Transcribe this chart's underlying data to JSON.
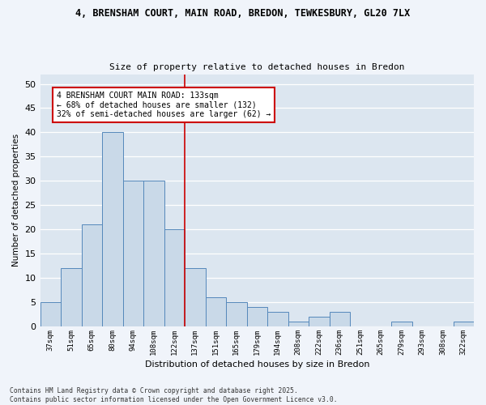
{
  "title_line1": "4, BRENSHAM COURT, MAIN ROAD, BREDON, TEWKESBURY, GL20 7LX",
  "title_line2": "Size of property relative to detached houses in Bredon",
  "xlabel": "Distribution of detached houses by size in Bredon",
  "ylabel": "Number of detached properties",
  "categories": [
    "37sqm",
    "51sqm",
    "65sqm",
    "80sqm",
    "94sqm",
    "108sqm",
    "122sqm",
    "137sqm",
    "151sqm",
    "165sqm",
    "179sqm",
    "194sqm",
    "208sqm",
    "222sqm",
    "236sqm",
    "251sqm",
    "265sqm",
    "279sqm",
    "293sqm",
    "308sqm",
    "322sqm"
  ],
  "values": [
    5,
    12,
    21,
    40,
    30,
    30,
    20,
    12,
    6,
    5,
    4,
    3,
    1,
    2,
    3,
    0,
    0,
    1,
    0,
    0,
    1
  ],
  "bar_color": "#c9d9e8",
  "bar_edge_color": "#5588bb",
  "vline_color": "#cc0000",
  "annotation_text": "4 BRENSHAM COURT MAIN ROAD: 133sqm\n← 68% of detached houses are smaller (132)\n32% of semi-detached houses are larger (62) →",
  "annotation_box_color": "#cc0000",
  "ylim": [
    0,
    52
  ],
  "yticks": [
    0,
    5,
    10,
    15,
    20,
    25,
    30,
    35,
    40,
    45,
    50
  ],
  "fig_background": "#f0f4fa",
  "plot_background": "#dce6f0",
  "grid_color": "#ffffff",
  "footer_line1": "Contains HM Land Registry data © Crown copyright and database right 2025.",
  "footer_line2": "Contains public sector information licensed under the Open Government Licence v3.0."
}
